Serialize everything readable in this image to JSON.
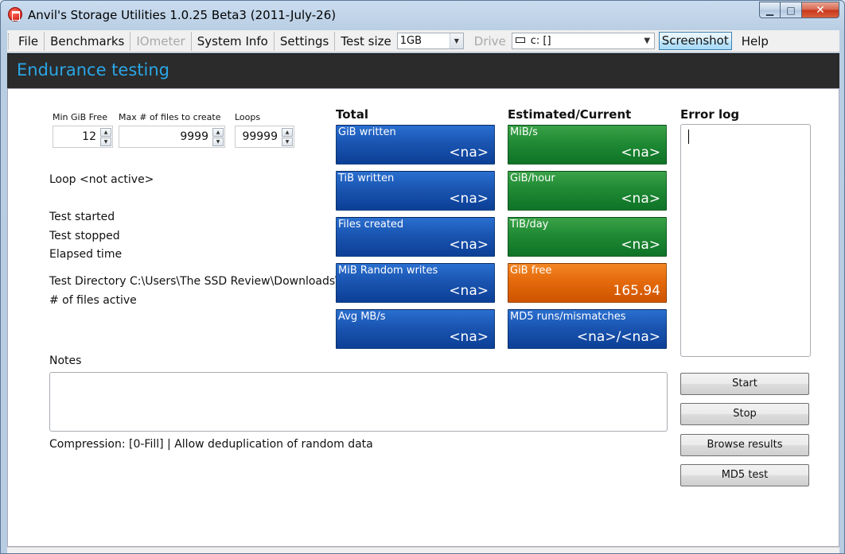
{
  "window": {
    "title": "Anvil's Storage Utilities 1.0.25 Beta3 (2011-July-26)",
    "min_glyph": "▁",
    "max_glyph": "□",
    "close_glyph": "✕"
  },
  "menubar": {
    "file": "File",
    "benchmarks": "Benchmarks",
    "iometer": "IOmeter",
    "system_info": "System Info",
    "settings": "Settings",
    "test_size_label": "Test size",
    "test_size_value": "1GB",
    "drive_label": "Drive",
    "drive_value": "c: []",
    "screenshot": "Screenshot",
    "help": "Help"
  },
  "header": {
    "title": "Endurance testing"
  },
  "params": {
    "min_free_label": "Min GiB Free",
    "min_free_value": "12",
    "max_files_label": "Max # of files to create",
    "max_files_value": "9999",
    "loops_label": "Loops",
    "loops_value": "99999"
  },
  "status": {
    "loop": "Loop <not active>",
    "test_started": "Test started",
    "test_stopped": "Test stopped",
    "elapsed_time": "Elapsed time",
    "test_directory": "Test Directory C:\\Users\\The SSD Review\\Downloads\\A",
    "files_active": "# of files active"
  },
  "total": {
    "heading": "Total",
    "tiles": [
      {
        "label": "GiB written",
        "value": "<na>"
      },
      {
        "label": "TiB written",
        "value": "<na>"
      },
      {
        "label": "Files created",
        "value": "<na>"
      },
      {
        "label": "MiB Random writes",
        "value": "<na>"
      },
      {
        "label": "Avg MB/s",
        "value": "<na>"
      }
    ]
  },
  "estimated": {
    "heading": "Estimated/Current",
    "tiles": [
      {
        "label": "MiB/s",
        "value": "<na>"
      },
      {
        "label": "GiB/hour",
        "value": "<na>"
      },
      {
        "label": "TiB/day",
        "value": "<na>"
      },
      {
        "label": "GiB free",
        "value": "165.94"
      },
      {
        "label": "MD5 runs/mismatches",
        "value": "<na>/<na>"
      }
    ]
  },
  "error_log": {
    "heading": "Error log"
  },
  "notes": {
    "label": "Notes"
  },
  "compression": "Compression: [0-Fill] | Allow deduplication of random data",
  "buttons": {
    "start": "Start",
    "stop": "Stop",
    "browse_results": "Browse results",
    "md5_test": "MD5 test"
  },
  "colors": {
    "header_text": "#2ba6e6",
    "tile_blue": "#1a55b1",
    "tile_green": "#1f8a34",
    "tile_orange": "#e46a0c"
  }
}
